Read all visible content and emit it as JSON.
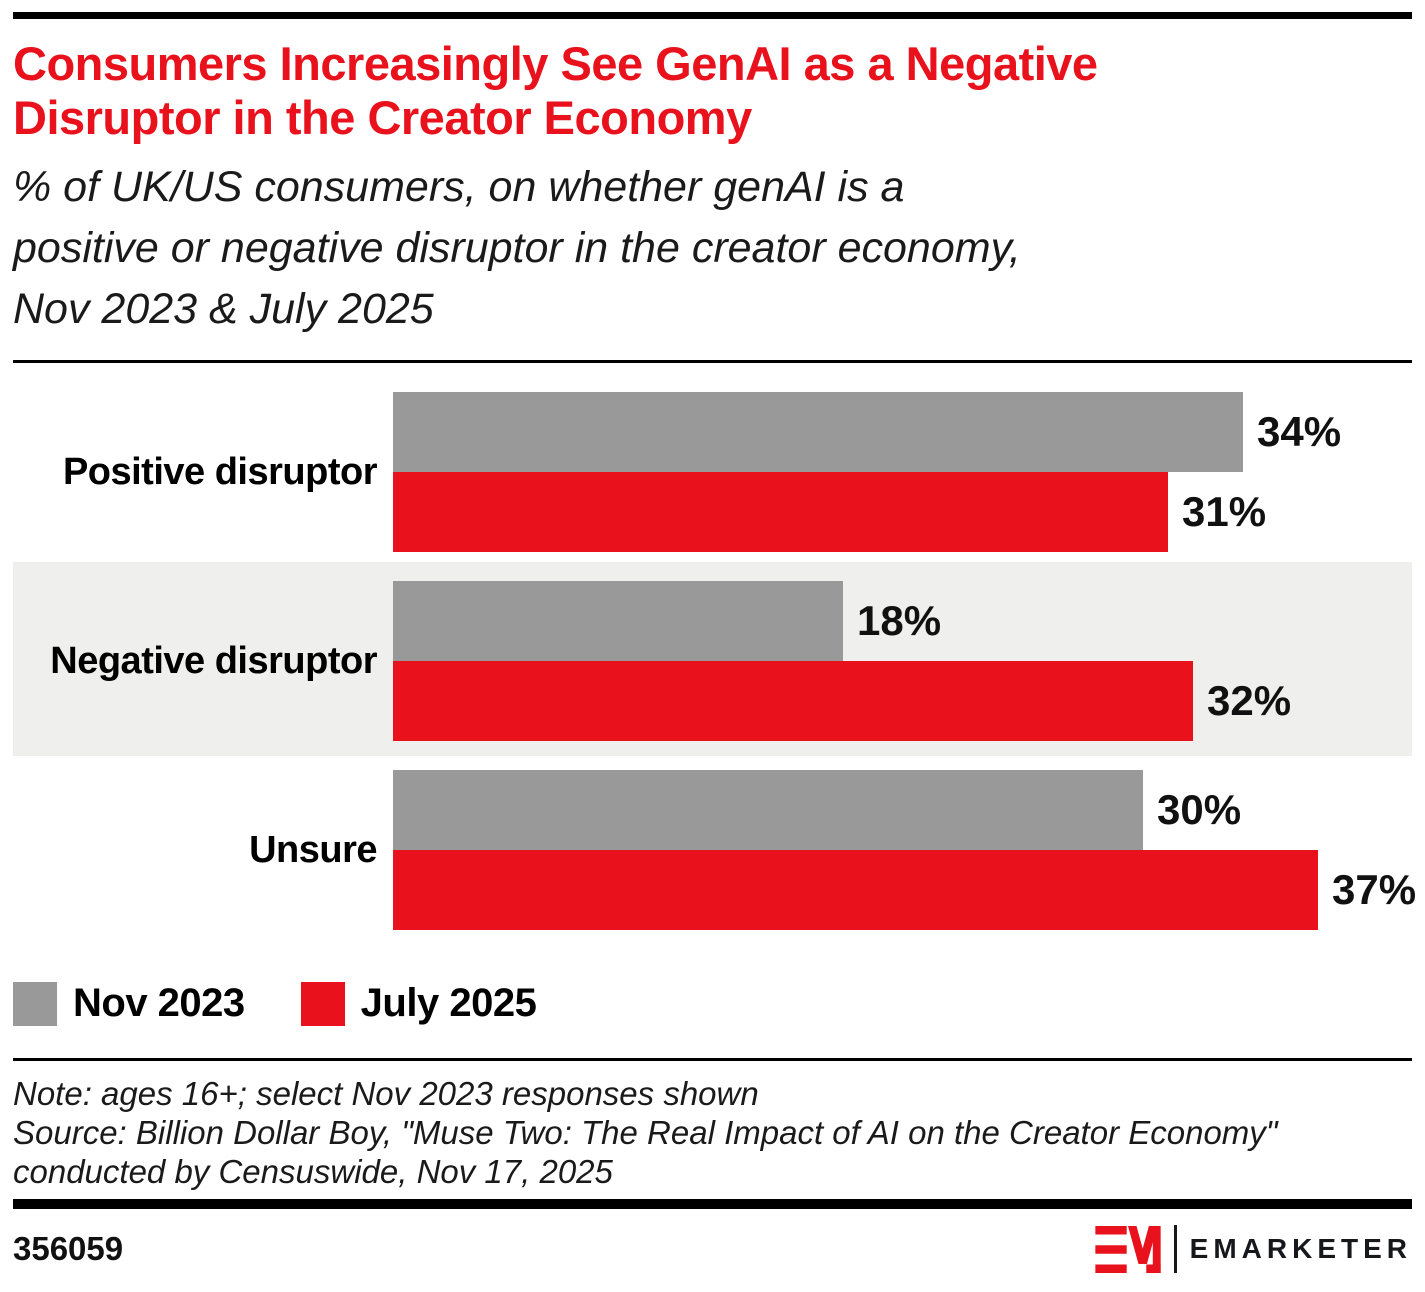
{
  "header": {
    "title": "Consumers Increasingly See GenAI as a Negative Disruptor in the Creator Economy",
    "title_lines": [
      "Consumers Increasingly See GenAI as a Negative",
      "Disruptor in the Creator Economy"
    ],
    "subtitle": "% of UK/US consumers, on whether genAI is a positive or negative disruptor in the creator economy, Nov 2023 & July 2025",
    "subtitle_lines": [
      "% of UK/US consumers, on whether genAI is a",
      "positive or negative disruptor in the creator economy,",
      "Nov 2023 & July 2025"
    ]
  },
  "chart_data": {
    "type": "bar",
    "orientation": "horizontal",
    "title": "Consumers Increasingly See GenAI as a Negative Disruptor in the Creator Economy",
    "subtitle": "% of UK/US consumers, on whether genAI is a positive or negative disruptor in the creator economy, Nov 2023 & July 2025",
    "categories": [
      "Positive disruptor",
      "Negative disruptor",
      "Unsure"
    ],
    "series": [
      {
        "name": "Nov 2023",
        "color": "#999999",
        "values": [
          34,
          18,
          30
        ]
      },
      {
        "name": "July 2025",
        "color": "#E8111C",
        "values": [
          31,
          32,
          37
        ]
      }
    ],
    "value_suffix": "%",
    "xlim": [
      0,
      40
    ],
    "grid": false,
    "legend_position": "bottom-left",
    "data_labels": true,
    "alternating_row_band_color": "#EFEFED"
  },
  "footer": {
    "note": "Note: ages 16+; select Nov 2023 responses shown",
    "source": "Source: Billion Dollar Boy, \"Muse Two: The Real Impact of AI on the Creator Economy\" conducted by Censuswide, Nov 17, 2025",
    "source_lines": [
      "Source: Billion Dollar Boy, \"Muse Two: The Real Impact of AI on the Creator Economy\"",
      "conducted by Censuswide, Nov 17, 2025"
    ],
    "chart_id": "356059",
    "brand_name": "EMARKETER"
  },
  "colors": {
    "accent_red": "#E8111C",
    "bar_gray": "#999999",
    "row_band": "#EFEFED",
    "rule_black": "#000000"
  }
}
